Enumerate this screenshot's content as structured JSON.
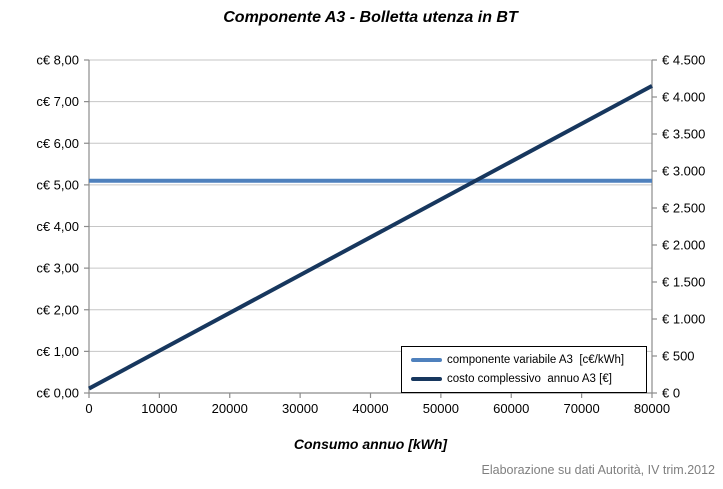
{
  "footer": {
    "source_note": "Elaborazione su dati Autorità, IV trim.2012"
  },
  "chart_data": {
    "type": "line",
    "title": "Componente A3 - Bolletta utenza in BT",
    "xlabel": "Consumo annuo [kWh]",
    "grid": "horizontal-only",
    "legend_position": "inside-bottom-right",
    "x": {
      "min": 0,
      "max": 80000,
      "tick_values": [
        0,
        10000,
        20000,
        30000,
        40000,
        50000,
        60000,
        70000,
        80000
      ],
      "tick_labels": [
        "0",
        "10000",
        "20000",
        "30000",
        "40000",
        "50000",
        "60000",
        "70000",
        "80000"
      ]
    },
    "left_axis": {
      "min": 0,
      "max": 8,
      "tick_step": 1,
      "tick_labels": [
        "c€ 0,00",
        "c€ 1,00",
        "c€ 2,00",
        "c€ 3,00",
        "c€ 4,00",
        "c€ 5,00",
        "c€ 6,00",
        "c€ 7,00",
        "c€ 8,00"
      ]
    },
    "right_axis": {
      "min": 0,
      "max": 4500,
      "tick_step": 500,
      "tick_labels": [
        "€ 0",
        "€ 500",
        "€ 1.000",
        "€ 1.500",
        "€ 2.000",
        "€ 2.500",
        "€ 3.000",
        "€ 3.500",
        "€ 4.000",
        "€ 4.500"
      ]
    },
    "series": [
      {
        "name": "componente variabile A3  [c€/kWh]",
        "axis": "left",
        "color": "#4F81BD",
        "x": [
          0,
          80000
        ],
        "y": [
          5.1,
          5.1
        ]
      },
      {
        "name": "costo complessivo  annuo A3 [€]",
        "axis": "right",
        "color": "#17375E",
        "x": [
          0,
          80000
        ],
        "y": [
          60,
          4150
        ]
      }
    ],
    "colors": {
      "gridline": "#C6C6C6",
      "axis": "#8C8C8C",
      "legend_border": "#000000",
      "footer_text": "#7F7F7F",
      "background": "#FFFFFF"
    }
  }
}
